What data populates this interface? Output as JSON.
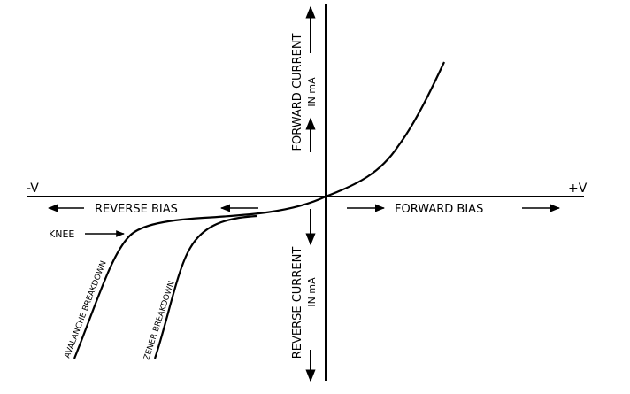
{
  "diagram": {
    "labels": {
      "neg_v": "-V",
      "pos_v": "+V",
      "forward_current": "FORWARD CURRENT",
      "forward_current_unit": "IN mA",
      "reverse_current": "REVERSE CURRENT",
      "reverse_current_unit": "IN mA",
      "reverse_bias": "REVERSE BIAS",
      "forward_bias": "FORWARD BIAS",
      "knee": "KNEE",
      "avalanche": "AVALANCHE BREAKDOWN",
      "zener": "ZENER BREAKDOWN"
    },
    "colors": {
      "stroke": "#000000",
      "background": "#ffffff"
    }
  }
}
